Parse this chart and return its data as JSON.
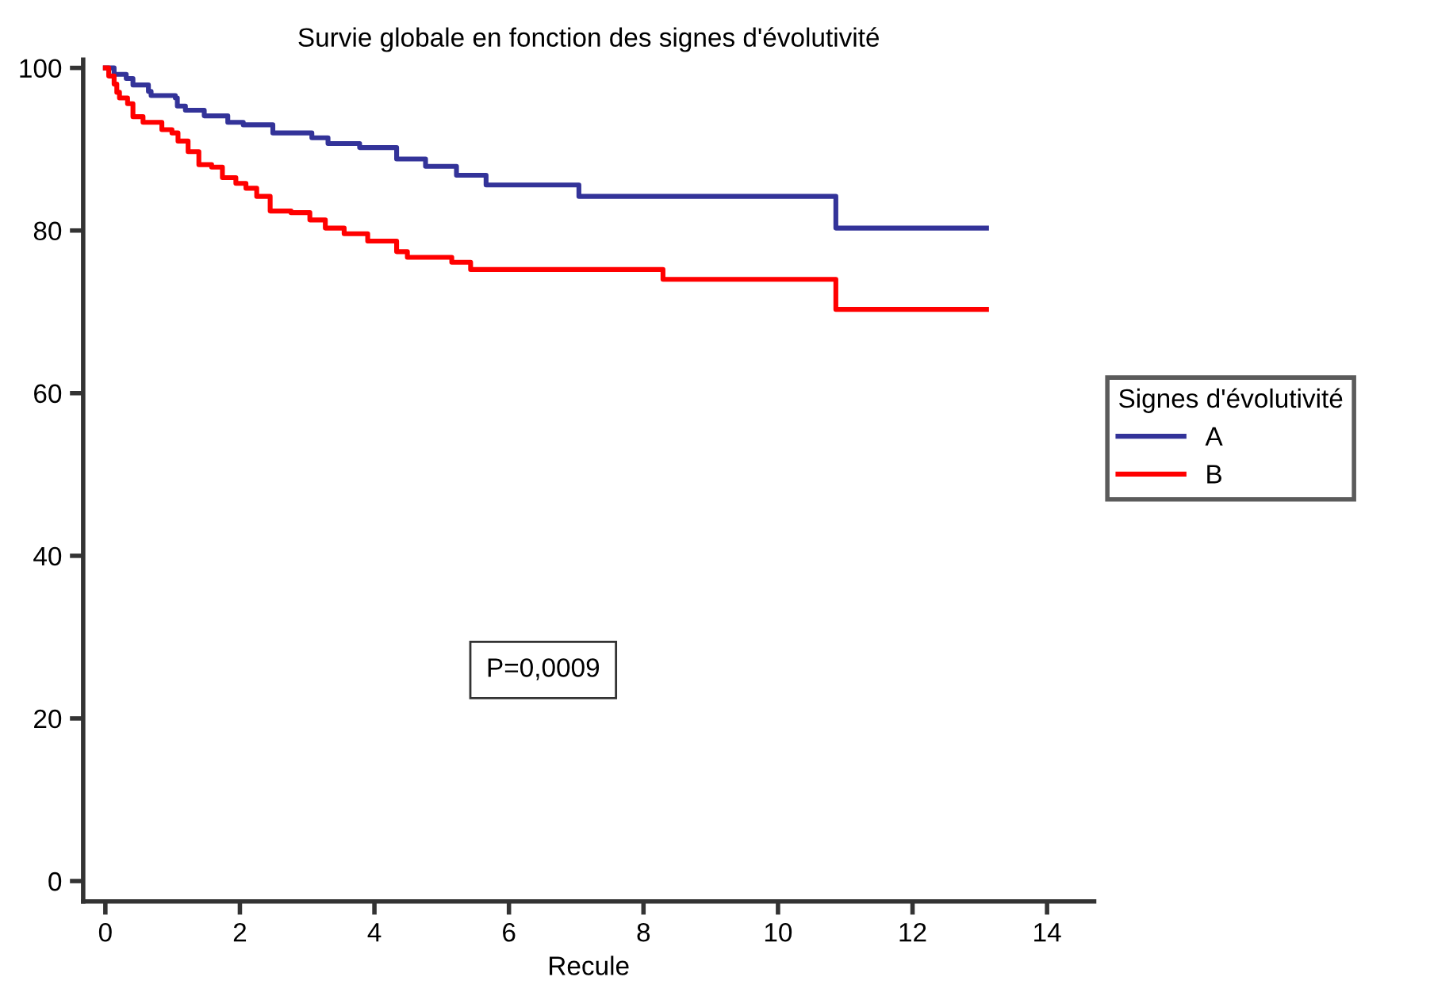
{
  "chart_data": {
    "type": "step",
    "title": "Survie globale en fonction des signes d'évolutivité",
    "xlabel": "Recule",
    "legend_title": "Signes d'évolutivité",
    "legend": "right",
    "grid": false,
    "marker": "none",
    "line_style": "solid",
    "xlim": [
      -0.33,
      14.7
    ],
    "xticks": [
      0,
      2,
      4,
      6,
      8,
      10,
      12,
      14
    ],
    "ylim": [
      -2.5,
      101
    ],
    "yticks": [
      0,
      20,
      40,
      60,
      80,
      100
    ],
    "annotations": [
      "P=0,0009"
    ],
    "series": [
      {
        "name": "A",
        "color": "#333399",
        "x": [
          0,
          0.13,
          0.31,
          0.41,
          0.64,
          0.68,
          1.04,
          1.07,
          1.19,
          1.47,
          1.82,
          2.05,
          2.49,
          3.07,
          3.31,
          3.78,
          4.33,
          4.76,
          5.22,
          5.66,
          7.04,
          10.86,
          13.1
        ],
        "values": [
          100,
          99.2,
          98.7,
          97.9,
          97.1,
          96.6,
          96.3,
          95.3,
          94.8,
          94.1,
          93.3,
          93.0,
          92.0,
          91.4,
          90.7,
          90.2,
          88.8,
          87.9,
          86.8,
          85.6,
          84.2,
          80.3,
          80.3
        ]
      },
      {
        "name": "B",
        "color": "#ff0000",
        "x": [
          0,
          0.05,
          0.13,
          0.17,
          0.21,
          0.33,
          0.41,
          0.56,
          0.84,
          0.99,
          1.08,
          1.23,
          1.39,
          1.58,
          1.74,
          1.94,
          2.09,
          2.25,
          2.45,
          2.76,
          3.04,
          3.27,
          3.55,
          3.9,
          4.33,
          4.49,
          5.15,
          5.43,
          8.29,
          10.86,
          13.1
        ],
        "values": [
          100,
          99.0,
          98.0,
          97.0,
          96.3,
          95.6,
          94.0,
          93.3,
          92.4,
          92.0,
          91.0,
          89.7,
          88.1,
          87.8,
          86.5,
          85.8,
          85.2,
          84.2,
          82.4,
          82.2,
          81.3,
          80.3,
          79.6,
          78.7,
          77.4,
          76.7,
          76.1,
          75.2,
          74.0,
          70.3,
          70.3
        ]
      }
    ]
  }
}
